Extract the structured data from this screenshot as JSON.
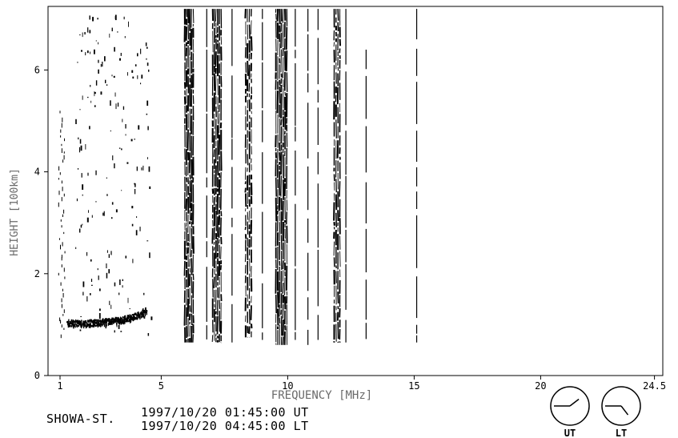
{
  "chart_data": {
    "type": "scatter",
    "title": "",
    "xlabel": "FREQUENCY [MHz]",
    "ylabel": "HEIGHT [100km]",
    "xlim": [
      1,
      24.5
    ],
    "ylim": [
      0,
      7.2
    ],
    "x_ticks": [
      1,
      5,
      10,
      15,
      20,
      24.5
    ],
    "y_ticks": [
      0,
      2,
      4,
      6
    ],
    "grid": false,
    "colors": {
      "ink": "#000000",
      "axis_label": "#6a6a6a",
      "background": "#ffffff"
    },
    "ionogram_trace": {
      "name": "",
      "x": [
        1.3,
        1.8,
        2.3,
        2.8,
        3.3,
        3.8,
        4.1,
        4.4
      ],
      "y": [
        1.05,
        1.03,
        1.05,
        1.07,
        1.1,
        1.15,
        1.2,
        1.3
      ]
    },
    "interference_bands": [
      {
        "x_start": 5.9,
        "x_end": 6.3,
        "y_top": 7.2,
        "y_bottom": 0.65,
        "density": 0.85
      },
      {
        "x_start": 7.0,
        "x_end": 7.4,
        "y_top": 7.2,
        "y_bottom": 0.65,
        "density": 0.8
      },
      {
        "x_start": 8.3,
        "x_end": 8.6,
        "y_top": 7.2,
        "y_bottom": 0.75,
        "density": 0.55
      },
      {
        "x_start": 9.5,
        "x_end": 10.0,
        "y_top": 7.2,
        "y_bottom": 0.6,
        "density": 0.95
      },
      {
        "x_start": 11.8,
        "x_end": 12.1,
        "y_top": 7.2,
        "y_bottom": 0.65,
        "density": 0.7
      }
    ],
    "vertical_lines": [
      {
        "x": 6.8,
        "y_top": 7.2,
        "y_bottom": 0.65
      },
      {
        "x": 7.8,
        "y_top": 7.2,
        "y_bottom": 0.65
      },
      {
        "x": 9.0,
        "y_top": 7.2,
        "y_bottom": 0.7
      },
      {
        "x": 10.3,
        "y_top": 7.2,
        "y_bottom": 0.7
      },
      {
        "x": 10.8,
        "y_top": 7.2,
        "y_bottom": 0.6
      },
      {
        "x": 11.2,
        "y_top": 7.2,
        "y_bottom": 0.7
      },
      {
        "x": 12.3,
        "y_top": 7.2,
        "y_bottom": 0.65
      },
      {
        "x": 13.1,
        "y_top": 6.4,
        "y_bottom": 0.7
      },
      {
        "x": 15.1,
        "y_top": 7.2,
        "y_bottom": 0.65
      }
    ],
    "left_edge_noise": {
      "x": 1.05,
      "y_top": 5.2,
      "y_bottom": 0.8
    }
  },
  "footer": {
    "station": "SHOWA-ST.",
    "timestamp_ut": "1997/10/20 01:45:00 UT",
    "timestamp_lt": "1997/10/20 04:45:00 LT"
  },
  "clocks": [
    {
      "label": "UT",
      "hour": 1,
      "minute": 45
    },
    {
      "label": "LT",
      "hour": 4,
      "minute": 45
    }
  ]
}
